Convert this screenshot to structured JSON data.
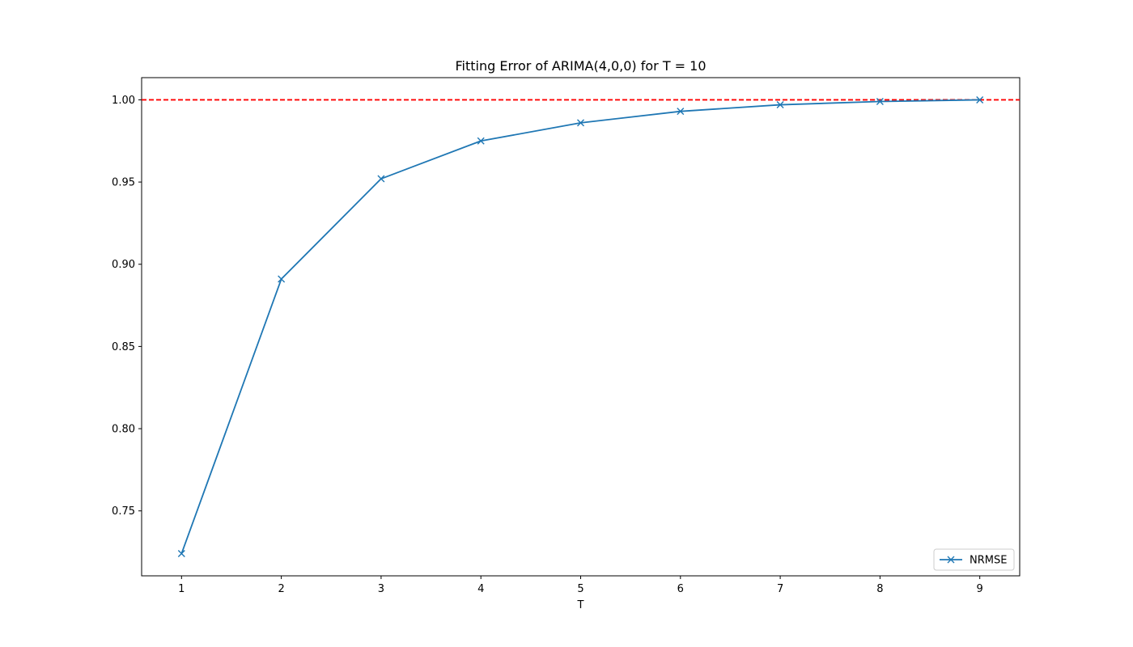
{
  "chart_data": {
    "type": "line",
    "title": "Fitting Error of ARIMA(4,0,0) for T = 10",
    "xlabel": "T",
    "ylabel": "",
    "xlim": [
      0.6,
      9.4
    ],
    "ylim": [
      0.7105,
      1.0135
    ],
    "xticks": [
      1,
      2,
      3,
      4,
      5,
      6,
      7,
      8,
      9
    ],
    "yticks": [
      0.75,
      0.8,
      0.85,
      0.9,
      0.95,
      1.0
    ],
    "ytick_labels": [
      "0.75",
      "0.80",
      "0.85",
      "0.90",
      "0.95",
      "1.00"
    ],
    "grid": false,
    "legend_position": "lower right",
    "series": [
      {
        "name": "NRMSE",
        "color": "#1f77b4",
        "marker": "x",
        "x": [
          1,
          2,
          3,
          4,
          5,
          6,
          7,
          8,
          9
        ],
        "y": [
          0.724,
          0.891,
          0.952,
          0.975,
          0.986,
          0.993,
          0.997,
          0.999,
          1.0
        ]
      }
    ],
    "reference_lines": [
      {
        "orientation": "horizontal",
        "y": 1.0,
        "color": "#ff0000",
        "style": "dashed"
      }
    ]
  }
}
